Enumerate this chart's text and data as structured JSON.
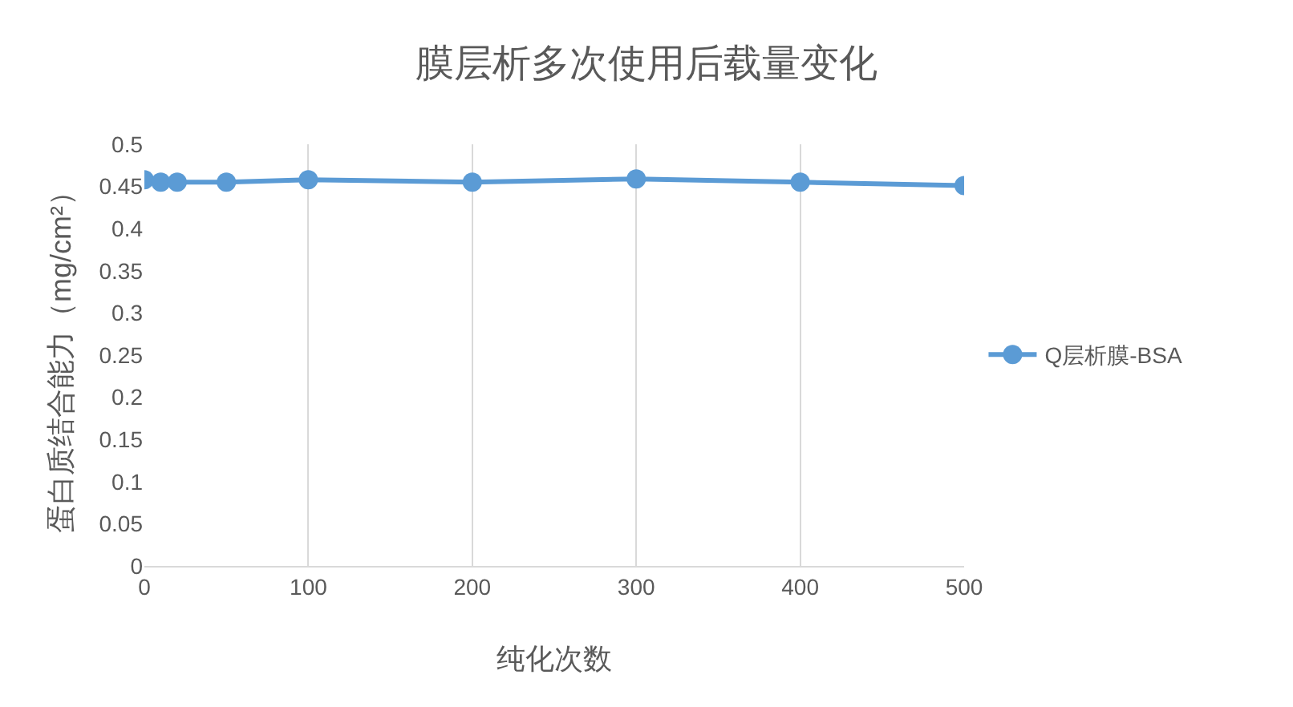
{
  "chart_data": {
    "type": "line",
    "title": "膜层析多次使用后载量变化",
    "xlabel": "纯化次数",
    "ylabel": "蛋白质结合能力（mg/cm²）",
    "x": [
      0,
      10,
      20,
      50,
      100,
      200,
      300,
      400,
      500
    ],
    "series": [
      {
        "name": "Q层析膜-BSA",
        "color": "#5b9bd5",
        "values": [
          0.458,
          0.455,
          0.455,
          0.455,
          0.458,
          0.455,
          0.459,
          0.455,
          0.451
        ]
      }
    ],
    "xlim": [
      0,
      500
    ],
    "xticks": [
      0,
      100,
      200,
      300,
      400,
      500
    ],
    "ylim": [
      0,
      0.5
    ],
    "yticks": [
      0,
      0.05,
      0.1,
      0.15,
      0.2,
      0.25,
      0.3,
      0.35,
      0.4,
      0.45,
      0.5
    ],
    "grid": "x",
    "legend": "right",
    "marker": "circle",
    "line_style": "solid"
  }
}
